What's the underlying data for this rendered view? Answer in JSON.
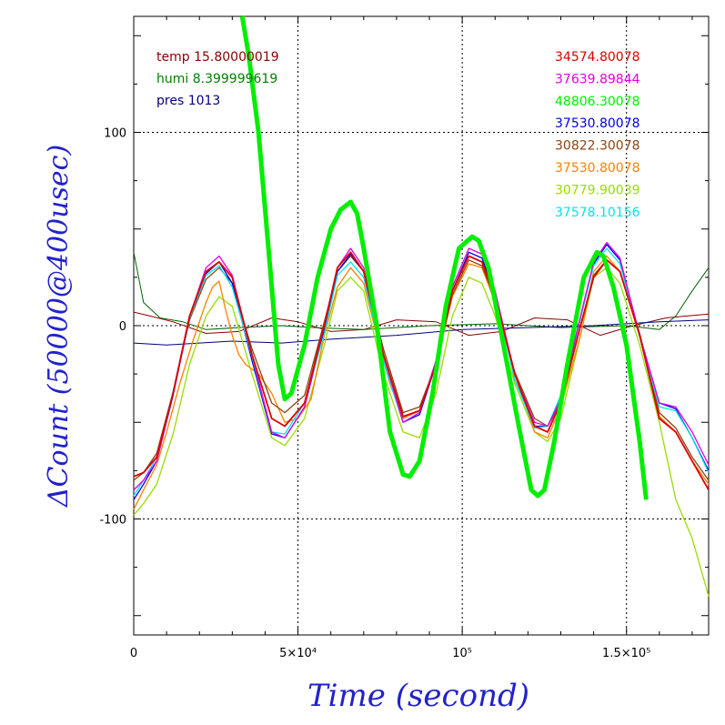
{
  "chart_data": {
    "type": "line",
    "xlabel": "Time (second)",
    "ylabel": "ΔCount (50000@400usec)",
    "xlim": [
      0,
      175000
    ],
    "ylim": [
      -160,
      160
    ],
    "x_ticks": [
      {
        "value": 0,
        "label": "0"
      },
      {
        "value": 50000,
        "label": "5×10⁴"
      },
      {
        "value": 100000,
        "label": "10⁵"
      },
      {
        "value": 150000,
        "label": "1.5×10⁵"
      }
    ],
    "y_ticks": [
      {
        "value": 100,
        "label": "100"
      },
      {
        "value": 0,
        "label": "0"
      },
      {
        "value": -100,
        "label": "-100"
      }
    ],
    "grid": true,
    "env_legend": [
      {
        "text": "temp 15.80000019",
        "color": "#8b0000"
      },
      {
        "text": "humi 8.399999619",
        "color": "#008000"
      },
      {
        "text": "pres 1013",
        "color": "#000080"
      }
    ],
    "env_series": [
      {
        "color": "#8b0000",
        "x": [
          0,
          5000,
          12000,
          22000,
          32000,
          42000,
          50000,
          60000,
          70000,
          80000,
          92000,
          102000,
          112000,
          122000,
          132000,
          142000,
          152000,
          162000,
          175000
        ],
        "y": [
          7,
          5,
          2,
          -4,
          -3,
          4,
          2,
          -3,
          -2,
          3,
          2,
          -5,
          -3,
          4,
          3,
          -5,
          0,
          4,
          6
        ]
      },
      {
        "color": "#006400",
        "x": [
          0,
          3000,
          8000,
          15000,
          22000,
          32000,
          45000,
          55000,
          70000,
          90000,
          110000,
          130000,
          150000,
          160000,
          165000,
          170000,
          175000
        ],
        "y": [
          38,
          12,
          4,
          2,
          -2,
          -1,
          0,
          -1,
          -2,
          0,
          1,
          -1,
          0,
          -2,
          5,
          18,
          30
        ]
      },
      {
        "color": "#000080",
        "x": [
          0,
          10000,
          20000,
          30000,
          45000,
          60000,
          80000,
          100000,
          120000,
          140000,
          160000,
          175000
        ],
        "y": [
          -9,
          -10,
          -9,
          -8,
          -9,
          -7,
          -5,
          -2,
          -1,
          0,
          2,
          3
        ]
      }
    ],
    "series": [
      {
        "name": "34574.80078",
        "color": "#e00000",
        "width": 1.8,
        "x": [
          0,
          3000,
          7000,
          12000,
          17000,
          22000,
          26000,
          30000,
          36000,
          42000,
          46000,
          52000,
          58000,
          62000,
          66000,
          70000,
          76000,
          82000,
          87000,
          92000,
          97000,
          102000,
          106000,
          110000,
          116000,
          122000,
          126000,
          130000,
          136000,
          140000,
          144000,
          148000,
          154000,
          160000,
          165000,
          170000,
          175000
        ],
        "y": [
          -78,
          -76,
          -68,
          -35,
          5,
          28,
          33,
          25,
          -15,
          -48,
          -52,
          -40,
          0,
          30,
          38,
          28,
          -15,
          -47,
          -44,
          -20,
          18,
          36,
          33,
          15,
          -25,
          -52,
          -55,
          -40,
          0,
          25,
          34,
          28,
          -5,
          -48,
          -55,
          -70,
          -85
        ]
      },
      {
        "name": "37639.89844",
        "color": "#e000e0",
        "width": 1.3,
        "x": [
          0,
          3000,
          7000,
          12000,
          17000,
          22000,
          26000,
          30000,
          36000,
          42000,
          46000,
          52000,
          58000,
          62000,
          66000,
          70000,
          76000,
          82000,
          87000,
          92000,
          97000,
          102000,
          106000,
          110000,
          116000,
          122000,
          126000,
          130000,
          136000,
          140000,
          144000,
          148000,
          154000,
          160000,
          165000,
          170000,
          175000
        ],
        "y": [
          -85,
          -80,
          -70,
          -35,
          5,
          30,
          36,
          26,
          -15,
          -55,
          -58,
          -42,
          0,
          30,
          40,
          30,
          -15,
          -50,
          -45,
          -18,
          20,
          40,
          37,
          18,
          -25,
          -50,
          -52,
          -38,
          5,
          33,
          43,
          35,
          -5,
          -40,
          -42,
          -55,
          -72
        ]
      },
      {
        "name": "48806.30078",
        "color": "#00ee00",
        "width": 5,
        "x": [
          33000,
          35000,
          38000,
          41000,
          44000,
          46000,
          48000,
          52000,
          56000,
          60000,
          63000,
          66000,
          68000,
          70000,
          74000,
          78000,
          82000,
          84000,
          87000,
          91000,
          95000,
          99000,
          103000,
          105000,
          108000,
          112000,
          117000,
          121000,
          123000,
          125000,
          128000,
          132000,
          137000,
          141000,
          143000,
          146000,
          150000,
          154000,
          156000
        ],
        "y": [
          165,
          140,
          100,
          40,
          -20,
          -38,
          -35,
          -10,
          25,
          50,
          60,
          64,
          58,
          40,
          0,
          -55,
          -77,
          -78,
          -70,
          -35,
          10,
          40,
          46,
          44,
          30,
          -5,
          -50,
          -85,
          -88,
          -85,
          -60,
          -20,
          25,
          38,
          36,
          20,
          -10,
          -60,
          -90
        ]
      },
      {
        "name": "37530.80078",
        "color": "#0000e0",
        "width": 1.3,
        "x": [
          0,
          3000,
          7000,
          12000,
          17000,
          22000,
          26000,
          30000,
          36000,
          42000,
          46000,
          52000,
          58000,
          62000,
          66000,
          70000,
          76000,
          82000,
          87000,
          92000,
          97000,
          102000,
          106000,
          110000,
          116000,
          122000,
          126000,
          130000,
          136000,
          140000,
          144000,
          148000,
          154000,
          160000,
          165000,
          170000,
          175000
        ],
        "y": [
          -90,
          -82,
          -70,
          -36,
          4,
          27,
          33,
          22,
          -18,
          -56,
          -58,
          -42,
          -2,
          28,
          37,
          28,
          -18,
          -50,
          -46,
          -20,
          18,
          38,
          35,
          16,
          -28,
          -52,
          -52,
          -38,
          4,
          32,
          42,
          34,
          -5,
          -40,
          -43,
          -58,
          -75
        ]
      },
      {
        "name": "30822.30078",
        "color": "#8b4513",
        "width": 1.3,
        "x": [
          0,
          3000,
          7000,
          12000,
          17000,
          22000,
          26000,
          30000,
          36000,
          42000,
          46000,
          52000,
          58000,
          62000,
          66000,
          70000,
          76000,
          82000,
          87000,
          92000,
          97000,
          102000,
          106000,
          110000,
          116000,
          122000,
          126000,
          130000,
          136000,
          140000,
          144000,
          148000,
          154000,
          160000,
          165000,
          170000,
          175000
        ],
        "y": [
          -80,
          -76,
          -66,
          -34,
          3,
          24,
          30,
          22,
          -12,
          -40,
          -45,
          -36,
          2,
          28,
          36,
          28,
          -12,
          -45,
          -42,
          -20,
          16,
          34,
          31,
          14,
          -24,
          -48,
          -52,
          -40,
          0,
          26,
          34,
          28,
          -4,
          -45,
          -53,
          -68,
          -80
        ]
      },
      {
        "name": "37530.80078",
        "color": "#ff8000",
        "width": 1.3,
        "x": [
          0,
          3000,
          7000,
          10000,
          14000,
          18000,
          22000,
          24000,
          26000,
          28000,
          30000,
          32000,
          34000,
          38000,
          42000,
          46000,
          50000,
          54000,
          58000,
          62000,
          66000,
          70000,
          74000,
          78000,
          82000,
          87000,
          92000,
          97000,
          102000,
          106000,
          110000,
          116000,
          122000,
          126000,
          130000,
          136000,
          140000,
          144000,
          148000,
          154000,
          160000,
          165000,
          170000,
          175000
        ],
        "y": [
          -95,
          -85,
          -72,
          -55,
          -30,
          -8,
          12,
          20,
          23,
          8,
          -5,
          -15,
          -20,
          -25,
          -35,
          -50,
          -48,
          -38,
          -5,
          20,
          30,
          22,
          -5,
          -30,
          -48,
          -44,
          -20,
          15,
          32,
          30,
          12,
          -25,
          -55,
          -58,
          -42,
          -5,
          28,
          36,
          28,
          -5,
          -47,
          -55,
          -70,
          -82
        ]
      },
      {
        "name": "30779.90039",
        "color": "#99dd00",
        "width": 1.3,
        "x": [
          0,
          3000,
          7000,
          12000,
          17000,
          22000,
          26000,
          30000,
          36000,
          42000,
          46000,
          52000,
          58000,
          62000,
          66000,
          70000,
          76000,
          82000,
          87000,
          92000,
          97000,
          102000,
          106000,
          110000,
          116000,
          122000,
          126000,
          130000,
          136000,
          140000,
          144000,
          148000,
          154000,
          160000,
          165000,
          170000,
          175000
        ],
        "y": [
          -98,
          -92,
          -82,
          -56,
          -20,
          5,
          15,
          10,
          -25,
          -58,
          -62,
          -48,
          -10,
          18,
          25,
          18,
          -25,
          -55,
          -58,
          -35,
          5,
          25,
          22,
          5,
          -30,
          -55,
          -60,
          -48,
          -5,
          25,
          30,
          22,
          -10,
          -50,
          -90,
          -110,
          -140
        ]
      },
      {
        "name": "37578.10156",
        "color": "#00e5ee",
        "width": 1.3,
        "x": [
          0,
          3000,
          7000,
          12000,
          17000,
          22000,
          26000,
          30000,
          36000,
          42000,
          46000,
          52000,
          58000,
          62000,
          66000,
          70000,
          76000,
          82000,
          87000,
          92000,
          97000,
          102000,
          106000,
          110000,
          116000,
          122000,
          126000,
          130000,
          136000,
          140000,
          144000,
          148000,
          154000,
          160000,
          165000,
          170000,
          175000
        ],
        "y": [
          -88,
          -80,
          -68,
          -34,
          4,
          26,
          31,
          20,
          -16,
          -55,
          -56,
          -40,
          -4,
          26,
          33,
          25,
          -18,
          -50,
          -45,
          -18,
          18,
          36,
          33,
          15,
          -28,
          -53,
          -52,
          -36,
          4,
          31,
          40,
          32,
          -6,
          -42,
          -44,
          -58,
          -76
        ]
      }
    ]
  }
}
